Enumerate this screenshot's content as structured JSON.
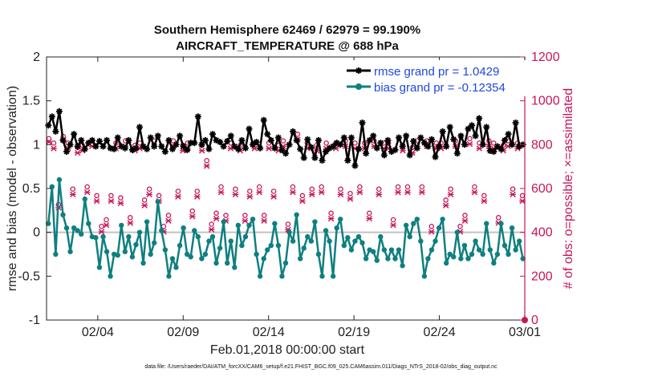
{
  "chart_data": {
    "type": "line",
    "title": "Southern Hemisphere 62469 / 62979 = 99.190%",
    "subtitle": "AIRCRAFT_TEMPERATURE @ 688 hPa",
    "xlabel": "Feb.01,2018 00:00:00 start",
    "ylabel": "rmse and bias (model - observation)",
    "y2label": "# of obs: o=possible; ×=assimilated",
    "footnote": "data file: /Users/raeder/DAI/ATM_forcXX/CAM6_setup/f.e21.FHIST_BGC.f09_025.CAM6assim.011/Diags_NTrS_2018-02/obs_diag_output.nc",
    "xlim": [
      1,
      29
    ],
    "ylim": [
      -1,
      2
    ],
    "y2lim": [
      0,
      1200
    ],
    "x_ticks": [
      4,
      9,
      14,
      19,
      24,
      29
    ],
    "x_tick_labels": [
      "02/04",
      "02/09",
      "02/14",
      "02/19",
      "02/24",
      "03/01"
    ],
    "y_ticks": [
      -1,
      -0.5,
      0,
      0.5,
      1,
      1.5,
      2
    ],
    "y_tick_labels": [
      "-1",
      "-0.5",
      "0",
      "0.5",
      "1",
      "1.5",
      "2"
    ],
    "y2_ticks": [
      0,
      200,
      400,
      600,
      800,
      1000,
      1200
    ],
    "y2_tick_labels": [
      "0",
      "200",
      "400",
      "600",
      "800",
      "1000",
      "1200"
    ],
    "zero_line": 0,
    "legend_position": "top-right",
    "series": [
      {
        "name": "rmse grand pr = 1.0429",
        "axis": "left",
        "color": "#000000",
        "marker": "star",
        "values": [
          1.22,
          1.32,
          1.15,
          1.38,
          1.05,
          0.92,
          1.0,
          1.12,
          0.98,
          1.05,
          0.95,
          1.02,
          1.05,
          0.98,
          1.04,
          0.98,
          1.05,
          0.96,
          0.95,
          1.08,
          0.98,
          0.96,
          1.05,
          0.94,
          0.96,
          1.2,
          0.98,
          0.95,
          1.08,
          0.98,
          1.1,
          0.98,
          0.92,
          1.05,
          0.95,
          1.0,
          1.1,
          0.98,
          0.94,
          1.02,
          1.02,
          1.32,
          1.0,
          1.05,
          0.95,
          1.12,
          1.05,
          1.03,
          0.98,
          1.04,
          1.1,
          0.98,
          0.95,
          1.05,
          0.96,
          1.18,
          1.0,
          1.03,
          0.96,
          1.28,
          1.12,
          1.05,
          0.96,
          1.08,
          0.94,
          0.9,
          1.0,
          1.15,
          1.05,
          0.95,
          0.85,
          1.06,
          0.97,
          0.85,
          1.05,
          0.82,
          0.92,
          0.96,
          0.98,
          1.02,
          1.0,
          1.08,
          0.82,
          1.08,
          0.76,
          0.95,
          1.25,
          0.9,
          1.05,
          1.1,
          0.96,
          1.02,
          0.88,
          1.05,
          0.92,
          0.94,
          1.08,
          0.98,
          1.1,
          0.88,
          1.04,
          0.96,
          1.08,
          1.02,
          0.98,
          1.06,
          0.86,
          0.98,
          1.15,
          0.98,
          1.2,
          1.06,
          0.9,
          1.1,
          1.0,
          1.18,
          1.22,
          1.1,
          1.3,
          1.0,
          1.2,
          0.93,
          0.92,
          0.98,
          0.95,
          1.05,
          1.12,
          1.0,
          1.25,
          0.98,
          1.0
        ]
      },
      {
        "name": "bias grand pr = -0.12354",
        "axis": "left",
        "color": "#0f7f80",
        "marker": "circle",
        "values": [
          0.1,
          0.52,
          -0.25,
          0.6,
          0.2,
          0.05,
          -0.22,
          0.05,
          0.02,
          -0.02,
          0.38,
          0.1,
          -0.05,
          -0.06,
          -0.4,
          -0.05,
          -0.22,
          -0.5,
          -0.25,
          -0.26,
          0.08,
          -0.22,
          -0.05,
          -0.28,
          -0.14,
          0.0,
          -0.35,
          0.12,
          -0.25,
          -0.12,
          0.35,
          0.02,
          -0.2,
          -0.5,
          -0.3,
          -0.4,
          -0.15,
          0.05,
          -0.25,
          -0.28,
          0.02,
          -0.05,
          -0.3,
          -0.25,
          -0.1,
          -0.05,
          -0.35,
          -0.18,
          0.12,
          -0.35,
          -0.1,
          -0.4,
          0.08,
          -0.15,
          -0.05,
          0.08,
          0.15,
          -0.25,
          -0.5,
          -0.3,
          -0.2,
          -0.15,
          0.1,
          -0.15,
          -0.5,
          -0.35,
          0.0,
          -0.1,
          0.2,
          -0.3,
          -0.18,
          -0.05,
          -0.1,
          0.12,
          -0.25,
          -0.5,
          0.02,
          -0.1,
          -0.5,
          0.05,
          0.15,
          -0.15,
          -0.06,
          -0.2,
          -0.1,
          -0.05,
          -0.12,
          -0.3,
          -0.2,
          -0.22,
          -0.32,
          -0.05,
          -0.2,
          -0.3,
          -0.2,
          -0.3,
          -0.2,
          -0.38,
          0.08,
          -0.05,
          0.1,
          0.15,
          -0.1,
          -0.5,
          -0.3,
          -0.2,
          -0.1,
          0.05,
          0.15,
          -0.35,
          -0.25,
          -0.28,
          0.0,
          -0.3,
          -0.15,
          -0.3,
          -0.25,
          -0.1,
          -0.2,
          -0.25,
          0.1,
          -0.2,
          -0.35,
          -0.25,
          0.1,
          -0.15,
          -0.25,
          0.05,
          -0.2,
          -0.1,
          -0.3
        ]
      },
      {
        "name": "possible",
        "axis": "right",
        "color": "#c8155a",
        "marker": "o",
        "values": [
          820,
          800,
          520,
          830,
          800,
          590,
          780,
          790,
          600,
          810,
          560,
          420,
          450,
          560,
          800,
          550,
          810,
          460,
          790,
          800,
          540,
          590,
          810,
          560,
          420,
          470,
          810,
          580,
          790,
          800,
          490,
          580,
          790,
          720,
          430,
          480,
          600,
          470,
          800,
          590,
          790,
          470,
          580,
          800,
          600,
          470,
          800,
          580,
          790,
          810,
          430,
          600,
          840,
          560,
          800,
          590,
          790,
          600,
          800,
          480,
          800,
          590,
          810,
          570,
          800,
          600,
          800,
          480,
          810,
          590,
          800,
          800,
          450,
          600,
          790,
          600,
          780,
          810,
          600,
          810,
          420,
          800,
          800,
          540,
          590,
          810,
          420,
          470,
          820,
          600,
          800,
          560,
          810,
          800,
          460,
          790,
          810,
          590,
          800,
          560
        ]
      },
      {
        "name": "assimilated",
        "axis": "right",
        "color": "#c8155a",
        "marker": "x",
        "values": [
          820,
          790,
          520,
          830,
          790,
          580,
          770,
          780,
          590,
          800,
          550,
          410,
          440,
          550,
          790,
          540,
          800,
          450,
          780,
          790,
          530,
          580,
          800,
          550,
          410,
          460,
          800,
          570,
          780,
          790,
          480,
          570,
          780,
          710,
          420,
          470,
          590,
          460,
          790,
          580,
          780,
          460,
          570,
          790,
          590,
          460,
          790,
          570,
          780,
          800,
          420,
          590,
          830,
          550,
          790,
          580,
          780,
          590,
          790,
          470,
          790,
          580,
          800,
          560,
          790,
          590,
          790,
          470,
          800,
          580,
          790,
          790,
          440,
          590,
          780,
          590,
          770,
          800,
          590,
          800,
          410,
          790,
          790,
          530,
          580,
          800,
          410,
          460,
          810,
          590,
          790,
          550,
          800,
          790,
          450,
          780,
          800,
          580,
          790,
          550
        ]
      }
    ]
  }
}
